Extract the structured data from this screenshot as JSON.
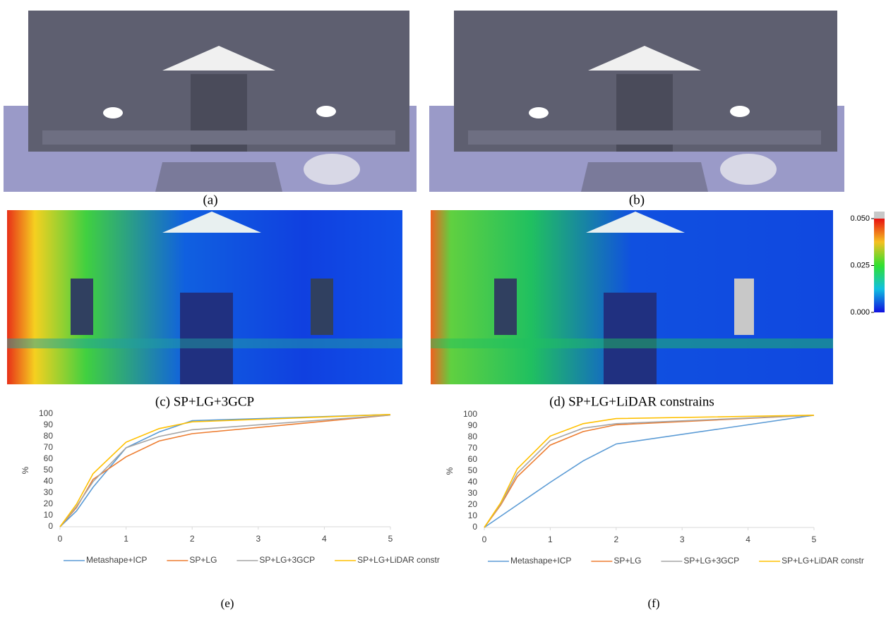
{
  "figure": {
    "panels": [
      {
        "caption": "(a)"
      },
      {
        "caption": "(b)"
      },
      {
        "caption": "(c) SP+LG+3GCP"
      },
      {
        "caption": "(d) SP+LG+LiDAR constrains"
      }
    ],
    "colorbar": {
      "lim": [
        0,
        0.05
      ],
      "ticks": [
        {
          "value": 0.05,
          "label": "0.050"
        },
        {
          "value": 0.025,
          "label": "0.025"
        },
        {
          "value": 0,
          "label": "0.000"
        }
      ]
    }
  },
  "chart_data": [
    {
      "type": "line",
      "caption": "(e)",
      "ylabel": "%",
      "legend": "bottom",
      "x": [
        0,
        0.25,
        0.5,
        1,
        1.5,
        2,
        5
      ],
      "xlim": [
        0,
        5
      ],
      "xticks": [
        0,
        1,
        2,
        3,
        4,
        5
      ],
      "ylim": [
        0,
        100
      ],
      "yticks": [
        0,
        10,
        20,
        30,
        40,
        50,
        60,
        70,
        80,
        90,
        100
      ],
      "series": [
        {
          "name": "Metashape+ICP",
          "color": "#5b9bd5",
          "values": [
            0,
            14,
            35,
            70,
            84,
            94,
            99.5
          ]
        },
        {
          "name": "SP+LG",
          "color": "#ed7d31",
          "values": [
            0,
            17,
            42,
            62,
            76,
            82.5,
            99
          ]
        },
        {
          "name": "SP+LG+3GCP",
          "color": "#a5a5a5",
          "values": [
            0,
            18,
            40,
            70,
            80,
            86,
            99
          ]
        },
        {
          "name": "SP+LG+LiDAR constr",
          "color": "#ffc000",
          "values": [
            0,
            20,
            47,
            75,
            87,
            93,
            99.5
          ]
        }
      ]
    },
    {
      "type": "line",
      "caption": "(f)",
      "ylabel": "%",
      "legend": "bottom",
      "x": [
        0,
        0.25,
        0.5,
        1,
        1.5,
        2,
        5
      ],
      "xlim": [
        0,
        5
      ],
      "xticks": [
        0,
        1,
        2,
        3,
        4,
        5
      ],
      "ylim": [
        0,
        100
      ],
      "yticks": [
        0,
        10,
        20,
        30,
        40,
        50,
        60,
        70,
        80,
        90,
        100
      ],
      "series": [
        {
          "name": "Metashape+ICP",
          "color": "#5b9bd5",
          "values": [
            0,
            10,
            20,
            40,
            59,
            74,
            99.5
          ]
        },
        {
          "name": "SP+LG",
          "color": "#ed7d31",
          "values": [
            0,
            20,
            45,
            73,
            85,
            91,
            99.5
          ]
        },
        {
          "name": "SP+LG+3GCP",
          "color": "#a5a5a5",
          "values": [
            0,
            21,
            48,
            77,
            88,
            92,
            99.5
          ]
        },
        {
          "name": "SP+LG+LiDAR constr",
          "color": "#ffc000",
          "values": [
            0,
            22,
            52,
            81,
            92,
            96.5,
            99.5
          ]
        }
      ]
    }
  ]
}
